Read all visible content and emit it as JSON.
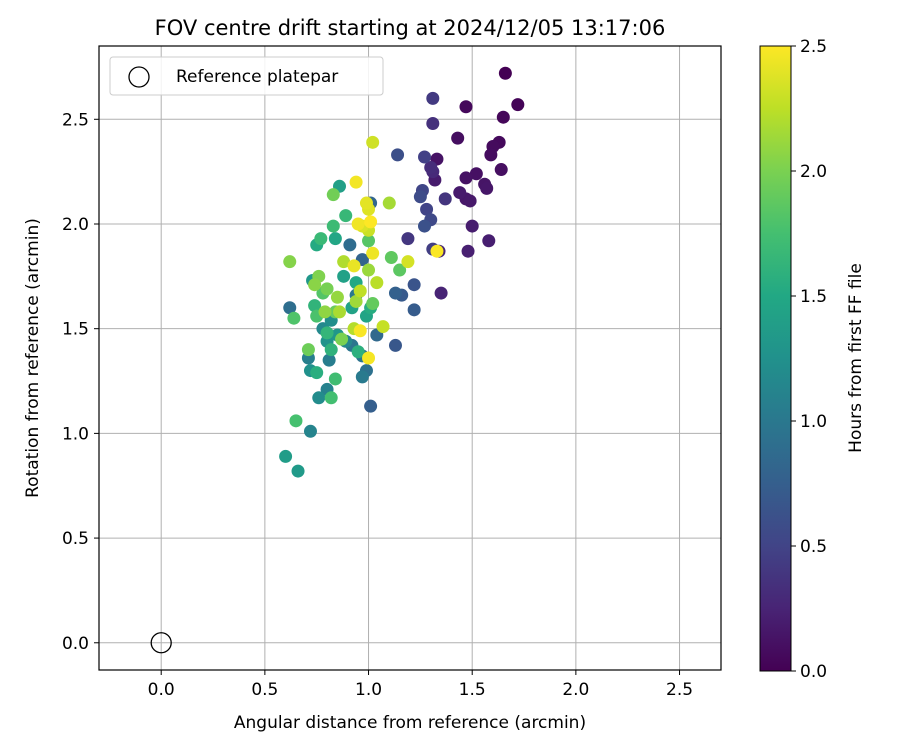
{
  "chart_data": {
    "type": "scatter",
    "title": "FOV centre drift starting at 2024/12/05 13:17:06",
    "xlabel": "Angular distance from reference (arcmin)",
    "ylabel": "Rotation from reference (arcmin)",
    "xlim": [
      -0.3,
      2.7
    ],
    "ylim": [
      -0.13,
      2.85
    ],
    "xticks": [
      0.0,
      0.5,
      1.0,
      1.5,
      2.0,
      2.5
    ],
    "yticks": [
      0.0,
      0.5,
      1.0,
      1.5,
      2.0,
      2.5
    ],
    "xtick_labels": [
      "0.0",
      "0.5",
      "1.0",
      "1.5",
      "2.0",
      "2.5"
    ],
    "ytick_labels": [
      "0.0",
      "0.5",
      "1.0",
      "1.5",
      "2.0",
      "2.5"
    ],
    "grid": true,
    "legend": {
      "position": "top-left",
      "entries": [
        {
          "label": "Reference platepar",
          "marker": "open-circle",
          "x": 0.0,
          "y": 0.0
        }
      ]
    },
    "colorbar": {
      "label": "Hours from first FF file",
      "range": [
        0.0,
        2.5
      ],
      "ticks": [
        0.0,
        0.5,
        1.0,
        1.5,
        2.0,
        2.5
      ],
      "tick_labels": [
        "0.0",
        "0.5",
        "1.0",
        "1.5",
        "2.0",
        "2.5"
      ],
      "colormap": "viridis"
    },
    "points": [
      [
        1.66,
        2.72,
        0.0
      ],
      [
        1.72,
        2.57,
        0.02
      ],
      [
        1.65,
        2.51,
        0.04
      ],
      [
        1.47,
        2.56,
        0.05
      ],
      [
        1.63,
        2.39,
        0.06
      ],
      [
        1.6,
        2.37,
        0.07
      ],
      [
        1.59,
        2.33,
        0.08
      ],
      [
        1.43,
        2.41,
        0.09
      ],
      [
        1.64,
        2.26,
        0.1
      ],
      [
        1.52,
        2.24,
        0.11
      ],
      [
        1.47,
        2.22,
        0.12
      ],
      [
        1.33,
        2.31,
        0.13
      ],
      [
        1.56,
        2.19,
        0.14
      ],
      [
        1.57,
        2.17,
        0.15
      ],
      [
        1.47,
        2.12,
        0.16
      ],
      [
        1.49,
        2.11,
        0.17
      ],
      [
        1.44,
        2.15,
        0.18
      ],
      [
        1.32,
        2.21,
        0.19
      ],
      [
        1.5,
        1.99,
        0.2
      ],
      [
        1.58,
        1.92,
        0.21
      ],
      [
        1.48,
        1.87,
        0.22
      ],
      [
        1.35,
        1.67,
        0.25
      ],
      [
        1.34,
        1.87,
        0.27
      ],
      [
        1.31,
        2.25,
        0.3
      ],
      [
        1.3,
        2.27,
        0.32
      ],
      [
        1.31,
        2.48,
        0.35
      ],
      [
        1.37,
        2.12,
        0.38
      ],
      [
        1.19,
        1.93,
        0.4
      ],
      [
        1.31,
        2.6,
        0.42
      ],
      [
        1.31,
        1.88,
        0.45
      ],
      [
        1.27,
        2.32,
        0.48
      ],
      [
        1.28,
        2.07,
        0.5
      ],
      [
        1.26,
        2.16,
        0.52
      ],
      [
        1.3,
        2.02,
        0.55
      ],
      [
        1.25,
        2.13,
        0.57
      ],
      [
        1.14,
        2.33,
        0.6
      ],
      [
        1.27,
        1.99,
        0.62
      ],
      [
        1.22,
        1.71,
        0.65
      ],
      [
        1.13,
        1.42,
        0.68
      ],
      [
        1.16,
        1.66,
        0.7
      ],
      [
        1.22,
        1.59,
        0.72
      ],
      [
        1.01,
        1.13,
        0.75
      ],
      [
        1.13,
        1.67,
        0.77
      ],
      [
        0.97,
        1.83,
        0.8
      ],
      [
        1.01,
        2.1,
        0.82
      ],
      [
        1.04,
        1.47,
        0.85
      ],
      [
        0.91,
        1.9,
        0.88
      ],
      [
        0.62,
        1.6,
        0.9
      ],
      [
        0.99,
        1.3,
        0.93
      ],
      [
        0.97,
        1.37,
        0.95
      ],
      [
        0.92,
        1.42,
        0.97
      ],
      [
        0.94,
        1.66,
        1.0
      ],
      [
        0.97,
        1.27,
        1.02
      ],
      [
        0.81,
        1.35,
        1.05
      ],
      [
        0.71,
        1.36,
        1.07
      ],
      [
        0.8,
        1.21,
        1.1
      ],
      [
        0.72,
        1.01,
        1.12
      ],
      [
        0.89,
        1.44,
        1.15
      ],
      [
        0.78,
        1.5,
        1.17
      ],
      [
        0.76,
        1.17,
        1.2
      ],
      [
        0.82,
        1.54,
        1.22
      ],
      [
        0.72,
        1.3,
        1.25
      ],
      [
        0.8,
        1.44,
        1.27
      ],
      [
        0.85,
        1.47,
        1.3
      ],
      [
        0.73,
        1.73,
        1.32
      ],
      [
        0.66,
        0.82,
        1.35
      ],
      [
        0.6,
        0.89,
        1.37
      ],
      [
        0.86,
        2.18,
        1.4
      ],
      [
        0.88,
        1.75,
        1.42
      ],
      [
        0.92,
        1.6,
        1.44
      ],
      [
        0.99,
        1.56,
        1.46
      ],
      [
        0.84,
        1.93,
        1.48
      ],
      [
        0.94,
        1.72,
        1.5
      ],
      [
        0.75,
        1.9,
        1.52
      ],
      [
        1.01,
        1.6,
        1.54
      ],
      [
        0.75,
        1.29,
        1.56
      ],
      [
        0.95,
        1.39,
        1.58
      ],
      [
        0.82,
        1.4,
        1.6
      ],
      [
        0.74,
        1.61,
        1.62
      ],
      [
        0.8,
        1.48,
        1.64
      ],
      [
        0.89,
        2.04,
        1.66
      ],
      [
        0.77,
        1.93,
        1.68
      ],
      [
        0.83,
        1.99,
        1.7
      ],
      [
        0.84,
        1.26,
        1.72
      ],
      [
        0.82,
        1.17,
        1.74
      ],
      [
        0.65,
        1.06,
        1.76
      ],
      [
        0.75,
        1.56,
        1.78
      ],
      [
        0.64,
        1.55,
        1.8
      ],
      [
        0.78,
        1.67,
        1.82
      ],
      [
        1.0,
        1.92,
        1.84
      ],
      [
        1.15,
        1.78,
        1.86
      ],
      [
        1.11,
        1.84,
        1.88
      ],
      [
        1.02,
        1.62,
        1.9
      ],
      [
        0.84,
        1.58,
        1.92
      ],
      [
        0.71,
        1.4,
        1.94
      ],
      [
        0.83,
        2.14,
        1.96
      ],
      [
        0.8,
        1.69,
        1.98
      ],
      [
        0.87,
        1.45,
        2.0
      ],
      [
        0.76,
        1.75,
        2.02
      ],
      [
        0.62,
        1.82,
        2.04
      ],
      [
        0.74,
        1.71,
        2.06
      ],
      [
        0.79,
        1.58,
        2.08
      ],
      [
        0.85,
        1.65,
        2.1
      ],
      [
        1.0,
        1.78,
        2.12
      ],
      [
        0.94,
        1.63,
        2.14
      ],
      [
        1.1,
        2.1,
        2.16
      ],
      [
        0.86,
        1.58,
        2.18
      ],
      [
        0.88,
        1.82,
        2.2
      ],
      [
        0.93,
        1.5,
        2.22
      ],
      [
        1.04,
        1.72,
        2.24
      ],
      [
        0.96,
        1.68,
        2.26
      ],
      [
        1.07,
        1.51,
        2.28
      ],
      [
        1.0,
        1.97,
        2.3
      ],
      [
        1.02,
        2.39,
        2.32
      ],
      [
        1.19,
        1.82,
        2.34
      ],
      [
        0.97,
        1.99,
        2.36
      ],
      [
        1.0,
        2.07,
        2.38
      ],
      [
        0.99,
        2.1,
        2.4
      ],
      [
        0.93,
        1.8,
        2.42
      ],
      [
        1.02,
        1.86,
        2.44
      ],
      [
        0.95,
        2.0,
        2.45
      ],
      [
        0.94,
        2.2,
        2.46
      ],
      [
        1.0,
        1.36,
        2.47
      ],
      [
        0.96,
        1.49,
        2.48
      ],
      [
        1.33,
        1.87,
        2.49
      ],
      [
        1.01,
        2.01,
        2.5
      ]
    ]
  }
}
